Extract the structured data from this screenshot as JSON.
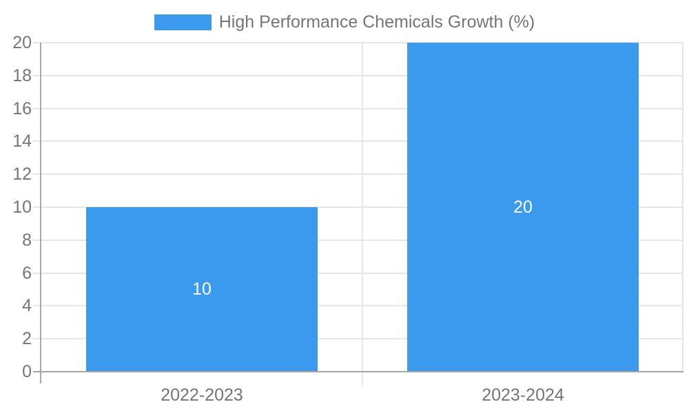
{
  "chart_data": {
    "type": "bar",
    "title": "",
    "legend": [
      "High Performance Chemicals Growth (%)"
    ],
    "legend_position": "top-center",
    "categories": [
      "2022-2023",
      "2023-2024"
    ],
    "values": [
      10,
      20
    ],
    "bar_value_labels": [
      "10",
      "20"
    ],
    "xlabel": "",
    "ylabel": "",
    "ylim": [
      0,
      20
    ],
    "yticks": [
      0,
      2,
      4,
      6,
      8,
      10,
      12,
      14,
      16,
      18,
      20
    ],
    "grid": true,
    "colors": {
      "bar": "#3b99ee",
      "bar_label_text": "#ffffff",
      "tick_text": "#757575",
      "grid_line": "#e6e6e6",
      "axis_line": "#a6a6a6",
      "background": "#ffffff"
    }
  }
}
